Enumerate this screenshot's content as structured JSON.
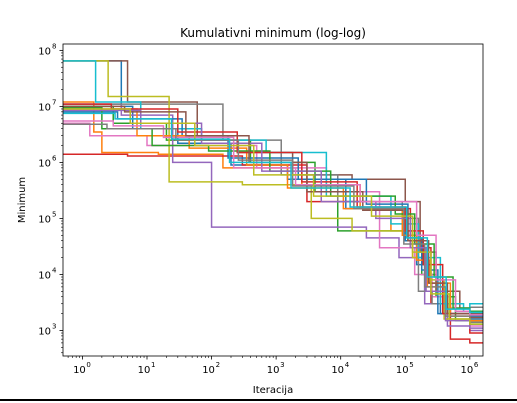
{
  "chart_data": {
    "type": "line",
    "title": "Kumulativni minimum (log-log)",
    "xlabel": "Iteracija",
    "ylabel": "Minimum",
    "xscale": "log",
    "yscale": "log",
    "xlim": [
      0.5,
      1600000
    ],
    "ylim": [
      350,
      130000000
    ],
    "x_ticks": [
      {
        "value": 1,
        "base": "10",
        "exp": "0"
      },
      {
        "value": 10,
        "base": "10",
        "exp": "1"
      },
      {
        "value": 100,
        "base": "10",
        "exp": "2"
      },
      {
        "value": 1000,
        "base": "10",
        "exp": "3"
      },
      {
        "value": 10000,
        "base": "10",
        "exp": "4"
      },
      {
        "value": 100000,
        "base": "10",
        "exp": "5"
      },
      {
        "value": 1000000,
        "base": "10",
        "exp": "6"
      }
    ],
    "y_ticks": [
      {
        "value": 1000,
        "base": "10",
        "exp": "3"
      },
      {
        "value": 10000,
        "base": "10",
        "exp": "4"
      },
      {
        "value": 100000,
        "base": "10",
        "exp": "5"
      },
      {
        "value": 1000000,
        "base": "10",
        "exp": "6"
      },
      {
        "value": 10000000,
        "base": "10",
        "exp": "7"
      },
      {
        "value": 100000000,
        "base": "10",
        "exp": "8"
      }
    ],
    "grid": false,
    "legend": "none",
    "series": [
      {
        "color": "#1f77b4",
        "x": [
          0.5,
          4,
          6,
          30,
          200,
          1500,
          12000,
          100000,
          150000,
          200000,
          350000,
          1000000
        ],
        "y": [
          65000000,
          10000000,
          4000000,
          2200000,
          900000,
          500000,
          150000,
          40000,
          15000,
          5000,
          2000,
          1800
        ]
      },
      {
        "color": "#ff7f0e",
        "x": [
          0.5,
          1.5,
          2,
          15,
          150,
          2500,
          20000,
          60000,
          130000,
          220000,
          400000,
          1000000
        ],
        "y": [
          12000000,
          3500000,
          1500000,
          1400000,
          800000,
          400000,
          150000,
          60000,
          20000,
          6000,
          2500,
          2000
        ]
      },
      {
        "color": "#2ca02c",
        "x": [
          0.5,
          3,
          20,
          400,
          4000,
          9000,
          110000,
          180000,
          300000,
          600000,
          1000000
        ],
        "y": [
          10000000,
          5000000,
          2500000,
          1000000,
          300000,
          60000,
          40000,
          10000,
          4000,
          1500,
          1300
        ]
      },
      {
        "color": "#d62728",
        "x": [
          0.5,
          2.2,
          5,
          40,
          300,
          3000,
          30000,
          120000,
          250000,
          500000,
          1000000
        ],
        "y": [
          1400000,
          1400000,
          1300000,
          1300000,
          900000,
          200000,
          150000,
          30000,
          3000,
          700,
          600
        ]
      },
      {
        "color": "#9467bd",
        "x": [
          0.5,
          4,
          25,
          100,
          2000,
          5000,
          25000,
          80000,
          200000,
          450000,
          1000000
        ],
        "y": [
          11000000,
          7000000,
          1000000,
          70000,
          70000,
          70000,
          45000,
          20000,
          3000,
          1200,
          1000
        ]
      },
      {
        "color": "#8c564b",
        "x": [
          0.5,
          5,
          60,
          250,
          1800,
          15000,
          100000,
          170000,
          300000,
          700000,
          1000000
        ],
        "y": [
          65000000,
          12000000,
          3000000,
          1500000,
          600000,
          500000,
          200000,
          25000,
          5000,
          2500,
          2000
        ]
      },
      {
        "color": "#e377c2",
        "x": [
          0.5,
          1.3,
          10,
          500,
          6000,
          40000,
          140000,
          260000,
          500000,
          1000000
        ],
        "y": [
          5000000,
          3000000,
          2000000,
          800000,
          300000,
          30000,
          10000,
          4000,
          2000,
          1200
        ]
      },
      {
        "color": "#7f7f7f",
        "x": [
          0.5,
          6,
          150,
          1200,
          9000,
          90000,
          160000,
          260000,
          600000,
          1000000
        ],
        "y": [
          11000000,
          11000000,
          2500000,
          600000,
          200000,
          100000,
          5000,
          3000,
          2500,
          2600
        ]
      },
      {
        "color": "#bcbd22",
        "x": [
          0.5,
          2.5,
          22,
          300,
          3500,
          15000,
          130000,
          210000,
          400000,
          1000000
        ],
        "y": [
          65000000,
          15000000,
          450000,
          400000,
          100000,
          60000,
          20000,
          8000,
          1600,
          1500
        ]
      },
      {
        "color": "#17becf",
        "x": [
          0.5,
          1.6,
          8,
          70,
          700,
          6000,
          60000,
          160000,
          350000,
          800000,
          1000000
        ],
        "y": [
          65000000,
          12000000,
          4000000,
          2500000,
          1500000,
          250000,
          80000,
          20000,
          3000,
          2200,
          3000
        ]
      },
      {
        "color": "#1f77b4",
        "x": [
          0.5,
          3.5,
          35,
          180,
          2200,
          25000,
          110000,
          180000,
          320000,
          1000000
        ],
        "y": [
          8000000,
          6000000,
          3000000,
          1200000,
          500000,
          180000,
          45000,
          12000,
          2000,
          1600
        ]
      },
      {
        "color": "#ff7f0e",
        "x": [
          0.5,
          7,
          45,
          350,
          1500,
          11000,
          90000,
          150000,
          240000,
          500000,
          1000000
        ],
        "y": [
          9000000,
          3000000,
          1800000,
          900000,
          350000,
          150000,
          50000,
          18000,
          7000,
          1800,
          1500
        ]
      },
      {
        "color": "#2ca02c",
        "x": [
          0.5,
          2,
          12,
          90,
          800,
          7000,
          70000,
          140000,
          280000,
          550000,
          1000000
        ],
        "y": [
          9500000,
          4000000,
          2000000,
          1600000,
          700000,
          250000,
          120000,
          35000,
          9000,
          2500,
          2200
        ]
      },
      {
        "color": "#d62728",
        "x": [
          0.5,
          2.8,
          30,
          250,
          2500,
          18000,
          100000,
          190000,
          380000,
          1000000
        ],
        "y": [
          11000000,
          9000000,
          3500000,
          1500000,
          450000,
          160000,
          60000,
          15000,
          2000,
          900
        ]
      },
      {
        "color": "#9467bd",
        "x": [
          0.5,
          8,
          70,
          600,
          5000,
          35000,
          120000,
          210000,
          420000,
          1000000
        ],
        "y": [
          8500000,
          5000000,
          2200000,
          700000,
          200000,
          100000,
          30000,
          5000,
          1500,
          1100
        ]
      },
      {
        "color": "#8c564b",
        "x": [
          0.5,
          4.5,
          40,
          380,
          3000,
          22000,
          110000,
          230000,
          450000,
          1000000
        ],
        "y": [
          10000000,
          8000000,
          3000000,
          1000000,
          300000,
          140000,
          40000,
          7000,
          2000,
          1700
        ]
      },
      {
        "color": "#e377c2",
        "x": [
          0.5,
          3,
          18,
          220,
          2000,
          20000,
          150000,
          300000,
          600000,
          1000000
        ],
        "y": [
          5500000,
          4500000,
          2800000,
          800000,
          400000,
          200000,
          50000,
          8000,
          2200,
          1900
        ]
      },
      {
        "color": "#7f7f7f",
        "x": [
          0.5,
          2.4,
          28,
          260,
          1800,
          16000,
          95000,
          200000,
          420000,
          1000000
        ],
        "y": [
          4800000,
          4000000,
          2500000,
          1100000,
          380000,
          150000,
          35000,
          6000,
          1800,
          1400
        ]
      },
      {
        "color": "#bcbd22",
        "x": [
          0.5,
          5.5,
          55,
          450,
          3800,
          30000,
          130000,
          250000,
          480000,
          1000000
        ],
        "y": [
          9000000,
          5000000,
          2000000,
          600000,
          250000,
          110000,
          25000,
          4500,
          1600,
          1300
        ]
      },
      {
        "color": "#17becf",
        "x": [
          0.5,
          3.2,
          24,
          190,
          1700,
          14000,
          105000,
          220000,
          430000,
          1000000
        ],
        "y": [
          7500000,
          6000000,
          2600000,
          1000000,
          350000,
          160000,
          45000,
          9000,
          2400,
          2100
        ]
      }
    ]
  }
}
